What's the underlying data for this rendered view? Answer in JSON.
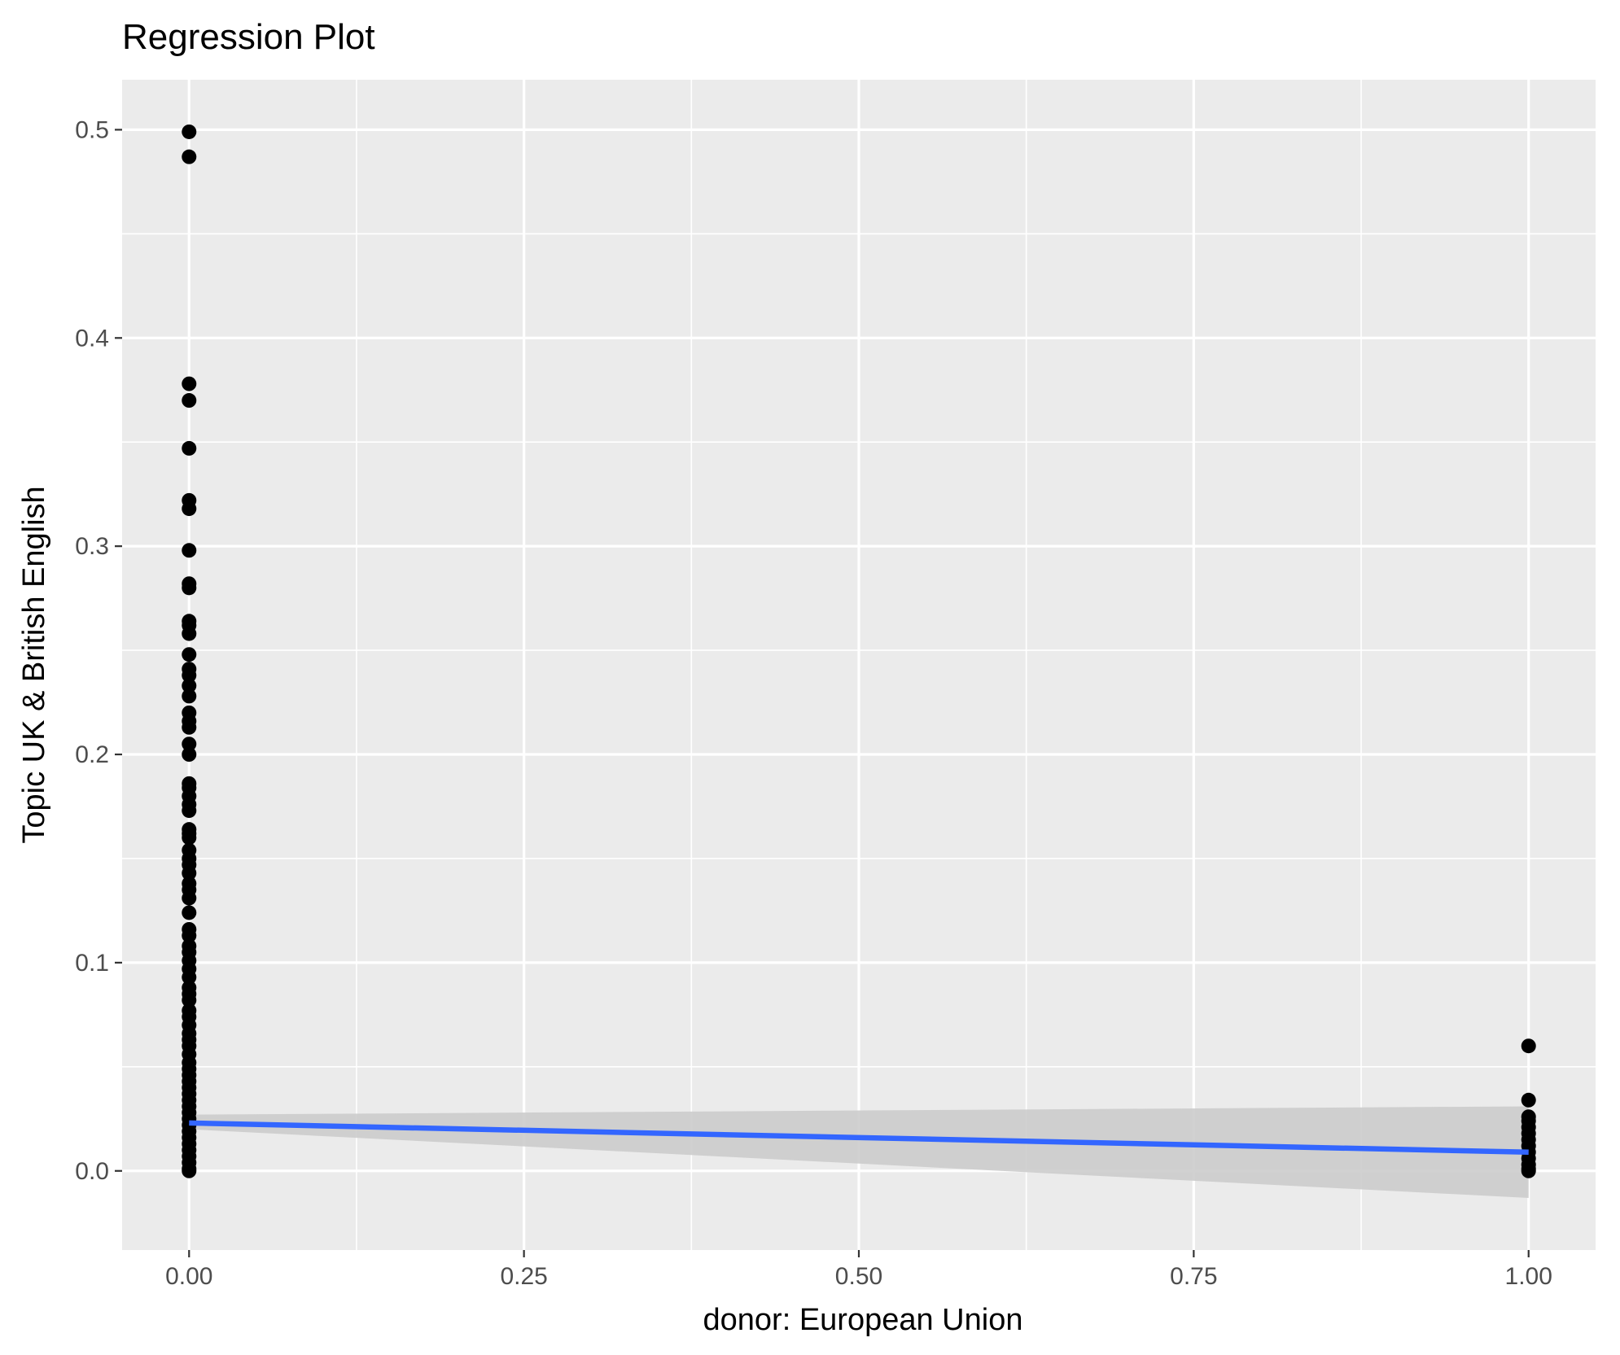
{
  "chart_data": {
    "type": "scatter",
    "title": "Regression Plot",
    "xlabel": "donor: European Union",
    "ylabel": "Topic UK & British English",
    "xlim": [
      -0.05,
      1.05
    ],
    "ylim": [
      -0.038,
      0.524
    ],
    "x_ticks": [
      0.0,
      0.25,
      0.5,
      0.75,
      1.0
    ],
    "x_tick_labels": [
      "0.00",
      "0.25",
      "0.50",
      "0.75",
      "1.00"
    ],
    "y_ticks": [
      0.0,
      0.1,
      0.2,
      0.3,
      0.4,
      0.5
    ],
    "y_tick_labels": [
      "0.0",
      "0.1",
      "0.2",
      "0.3",
      "0.4",
      "0.5"
    ],
    "grid": true,
    "series": [
      {
        "type": "scatter",
        "color": "#000000",
        "points": [
          [
            0,
            0.499
          ],
          [
            0,
            0.487
          ],
          [
            0,
            0.378
          ],
          [
            0,
            0.37
          ],
          [
            0,
            0.347
          ],
          [
            0,
            0.322
          ],
          [
            0,
            0.318
          ],
          [
            0,
            0.298
          ],
          [
            0,
            0.282
          ],
          [
            0,
            0.28
          ],
          [
            0,
            0.264
          ],
          [
            0,
            0.262
          ],
          [
            0,
            0.258
          ],
          [
            0,
            0.248
          ],
          [
            0,
            0.241
          ],
          [
            0,
            0.238
          ],
          [
            0,
            0.233
          ],
          [
            0,
            0.228
          ],
          [
            0,
            0.22
          ],
          [
            0,
            0.216
          ],
          [
            0,
            0.213
          ],
          [
            0,
            0.205
          ],
          [
            0,
            0.2
          ],
          [
            0,
            0.186
          ],
          [
            0,
            0.184
          ],
          [
            0,
            0.18
          ],
          [
            0,
            0.176
          ],
          [
            0,
            0.173
          ],
          [
            0,
            0.164
          ],
          [
            0,
            0.162
          ],
          [
            0,
            0.16
          ],
          [
            0,
            0.154
          ],
          [
            0,
            0.15
          ],
          [
            0,
            0.147
          ],
          [
            0,
            0.143
          ],
          [
            0,
            0.138
          ],
          [
            0,
            0.135
          ],
          [
            0,
            0.131
          ],
          [
            0,
            0.124
          ],
          [
            0,
            0.116
          ],
          [
            0,
            0.113
          ],
          [
            0,
            0.108
          ],
          [
            0,
            0.105
          ],
          [
            0,
            0.101
          ],
          [
            0,
            0.097
          ],
          [
            0,
            0.093
          ],
          [
            0,
            0.088
          ],
          [
            0,
            0.085
          ],
          [
            0,
            0.082
          ],
          [
            0,
            0.077
          ],
          [
            0,
            0.074
          ],
          [
            0,
            0.07
          ],
          [
            0,
            0.066
          ],
          [
            0,
            0.063
          ],
          [
            0,
            0.06
          ],
          [
            0,
            0.056
          ],
          [
            0,
            0.052
          ],
          [
            0,
            0.049
          ],
          [
            0,
            0.046
          ],
          [
            0,
            0.043
          ],
          [
            0,
            0.04
          ],
          [
            0,
            0.037
          ],
          [
            0,
            0.034
          ],
          [
            0,
            0.031
          ],
          [
            0,
            0.028
          ],
          [
            0,
            0.025
          ],
          [
            0,
            0.022
          ],
          [
            0,
            0.019
          ],
          [
            0,
            0.016
          ],
          [
            0,
            0.013
          ],
          [
            0,
            0.01
          ],
          [
            0,
            0.007
          ],
          [
            0,
            0.004
          ],
          [
            0,
            0.001
          ],
          [
            0,
            0.0
          ],
          [
            1,
            0.06
          ],
          [
            1,
            0.034
          ],
          [
            1,
            0.026
          ],
          [
            1,
            0.024
          ],
          [
            1,
            0.021
          ],
          [
            1,
            0.018
          ],
          [
            1,
            0.015
          ],
          [
            1,
            0.012
          ],
          [
            1,
            0.009
          ],
          [
            1,
            0.006
          ],
          [
            1,
            0.003
          ],
          [
            1,
            0.001
          ],
          [
            1,
            0.0
          ]
        ]
      },
      {
        "type": "line",
        "color": "#3366ff",
        "points": [
          [
            0,
            0.023
          ],
          [
            1,
            0.009
          ]
        ],
        "confidence_band": {
          "color": "#cccccc",
          "lower": [
            [
              0,
              0.02
            ],
            [
              1,
              -0.013
            ]
          ],
          "upper": [
            [
              0,
              0.027
            ],
            [
              1,
              0.031
            ]
          ]
        }
      }
    ]
  }
}
